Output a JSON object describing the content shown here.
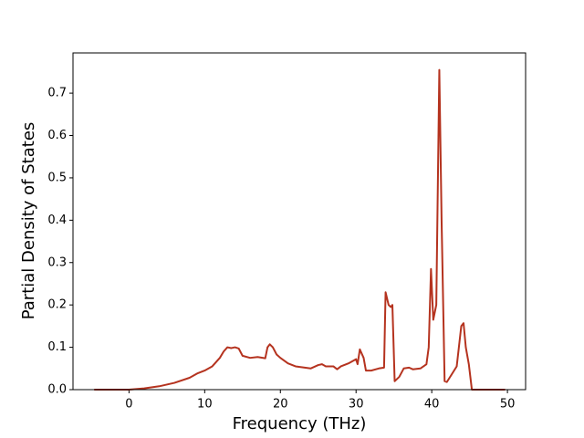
{
  "chart_data": {
    "type": "line",
    "x_label": "Frequency (THz)",
    "y_label": "Partial Density of States",
    "x": [
      -4.6,
      0,
      2,
      4,
      6,
      8,
      9,
      10,
      11,
      12,
      12.5,
      13,
      13.5,
      14,
      14.5,
      15,
      16,
      17,
      18,
      18.3,
      18.6,
      19,
      19.5,
      20,
      21,
      22,
      24,
      25,
      25.5,
      26,
      27,
      27.5,
      28,
      29,
      30,
      30.2,
      30.5,
      31,
      31.3,
      32,
      33,
      33.7,
      33.9,
      34.3,
      34.6,
      34.8,
      35.1,
      35.7,
      36.3,
      37,
      37.5,
      38.5,
      39.3,
      39.6,
      39.9,
      40.2,
      40.6,
      41.0,
      41.3,
      41.7,
      42.0,
      42.6,
      43.3,
      43.9,
      44.2,
      44.5,
      44.9,
      45.3,
      49.7
    ],
    "series": [
      {
        "color": "#b5331f",
        "values": [
          0,
          0,
          0.003,
          0.008,
          0.016,
          0.028,
          0.038,
          0.045,
          0.055,
          0.075,
          0.09,
          0.1,
          0.098,
          0.1,
          0.097,
          0.08,
          0.075,
          0.077,
          0.074,
          0.1,
          0.107,
          0.1,
          0.083,
          0.075,
          0.062,
          0.055,
          0.05,
          0.058,
          0.06,
          0.055,
          0.055,
          0.048,
          0.055,
          0.062,
          0.072,
          0.06,
          0.095,
          0.075,
          0.045,
          0.045,
          0.05,
          0.052,
          0.23,
          0.2,
          0.195,
          0.2,
          0.02,
          0.03,
          0.05,
          0.052,
          0.048,
          0.05,
          0.06,
          0.1,
          0.285,
          0.165,
          0.2,
          0.755,
          0.4,
          0.02,
          0.018,
          0.035,
          0.055,
          0.15,
          0.157,
          0.1,
          0.06,
          0,
          0
        ]
      }
    ],
    "xlim": [
      -7.4,
      52.4
    ],
    "xticks": [
      0,
      10,
      20,
      30,
      40,
      50
    ],
    "ylim": [
      0,
      0.795
    ],
    "yticks": [
      {
        "value": 0,
        "label": "0.0"
      },
      0.1,
      0.2,
      0.3,
      0.4,
      0.5,
      0.6,
      0.7
    ],
    "grid": false
  }
}
